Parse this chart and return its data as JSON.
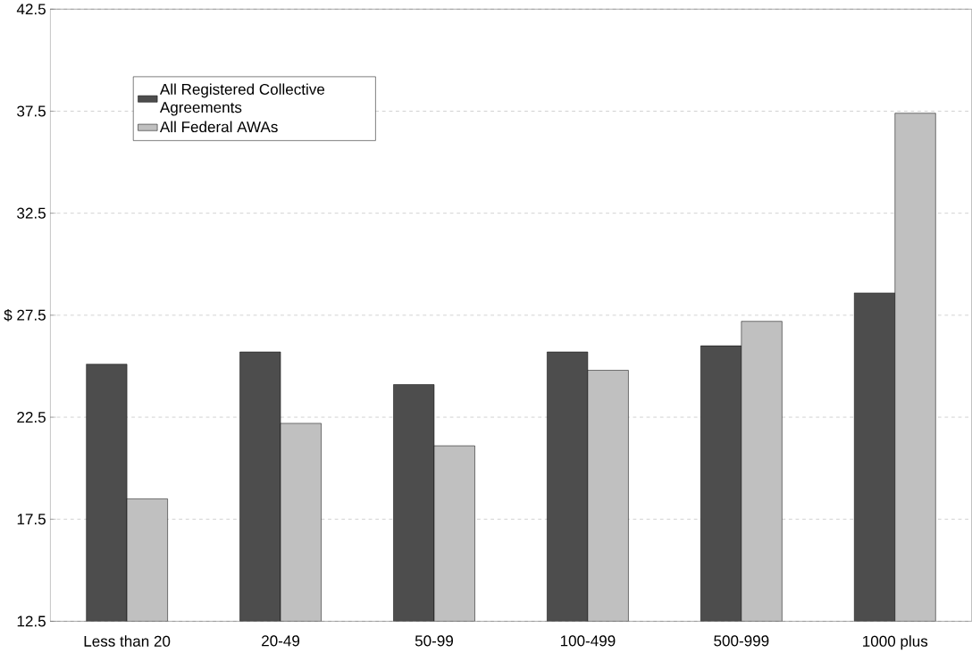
{
  "chart_data": {
    "type": "bar",
    "categories": [
      "Less than 20",
      "20-49",
      "50-99",
      "100-499",
      "500-999",
      "1000 plus"
    ],
    "series": [
      {
        "name": "All Registered Collective Agreements",
        "color": "#4d4d4d",
        "values": [
          25.1,
          25.7,
          24.1,
          25.7,
          26.0,
          28.6
        ]
      },
      {
        "name": "All Federal AWAs",
        "color": "#c0c0c0",
        "values": [
          18.5,
          22.2,
          21.1,
          24.8,
          27.2,
          37.4
        ]
      }
    ],
    "ylim": [
      12.5,
      42.5
    ],
    "yticks": [
      12.5,
      17.5,
      22.5,
      {
        "value": 27.5,
        "label": "$ 27.5"
      },
      32.5,
      37.5,
      42.5
    ],
    "grid": "y",
    "legend": "top left"
  }
}
